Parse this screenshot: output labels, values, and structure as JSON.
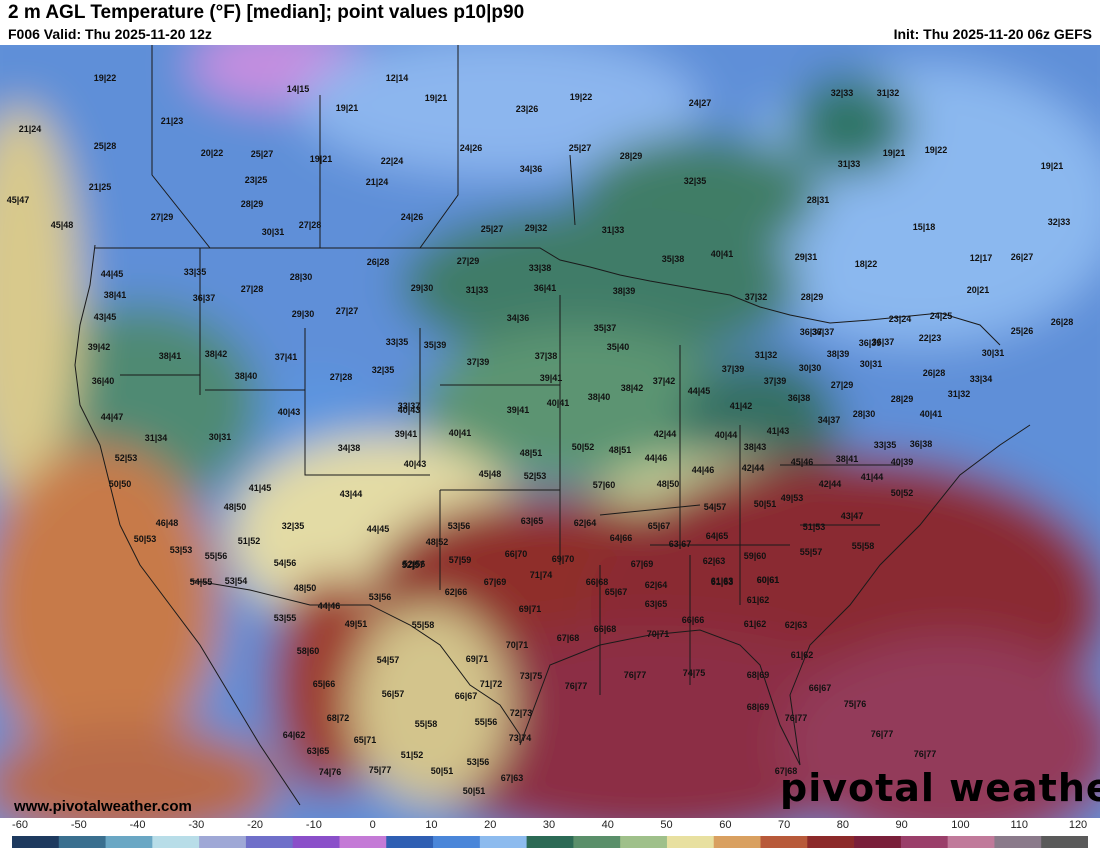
{
  "header": {
    "title": "2 m AGL Temperature (°F) [median]; point values p10|p90",
    "valid": "F006 Valid: Thu 2025-11-20 12z",
    "init": "Init: Thu 2025-11-20 06z GEFS"
  },
  "branding": {
    "website": "www.pivotalweather.com",
    "logo": "pivotal weather"
  },
  "legend": {
    "ticks": [
      "-60",
      "-50",
      "-40",
      "-30",
      "-20",
      "-10",
      "0",
      "10",
      "20",
      "30",
      "40",
      "50",
      "60",
      "70",
      "80",
      "90",
      "100",
      "110",
      "120"
    ],
    "colors": [
      "#1e3a5f",
      "#3a6f8f",
      "#6aa7c4",
      "#b8dde8",
      "#9fa8d6",
      "#6f6fc9",
      "#8a4fc9",
      "#c47ad6",
      "#2f5fb3",
      "#4a86d9",
      "#8dbbee",
      "#2c6a55",
      "#5a8f6a",
      "#9fc08a",
      "#e8e0a0",
      "#d9a060",
      "#b85a3a",
      "#8c2a2a",
      "#7a1f3a",
      "#9a3f6a",
      "#c07a9a",
      "#8a7a8a",
      "#5a5a5a"
    ]
  },
  "map_points": [
    {
      "label": "19|22"
    },
    {
      "label": "12|14"
    },
    {
      "label": "14|15"
    },
    {
      "label": "19|21"
    },
    {
      "label": "23|26"
    },
    {
      "label": "19|22"
    },
    {
      "label": "24|27"
    },
    {
      "label": "32|33"
    },
    {
      "label": "31|32"
    },
    {
      "label": "21|24"
    },
    {
      "label": "21|23"
    },
    {
      "label": "19|21"
    },
    {
      "label": "25|28"
    },
    {
      "label": "20|22"
    },
    {
      "label": "25|27"
    },
    {
      "label": "19|21"
    },
    {
      "label": "22|24"
    },
    {
      "label": "24|26"
    },
    {
      "label": "25|27"
    },
    {
      "label": "28|29"
    },
    {
      "label": "19|21"
    },
    {
      "label": "19|22"
    },
    {
      "label": "31|33"
    },
    {
      "label": "19|21"
    },
    {
      "label": "21|25"
    },
    {
      "label": "23|25"
    },
    {
      "label": "21|24"
    },
    {
      "label": "34|36"
    },
    {
      "label": "32|35"
    },
    {
      "label": "45|47"
    },
    {
      "label": "28|29"
    },
    {
      "label": "28|31"
    },
    {
      "label": "27|29"
    },
    {
      "label": "24|26"
    },
    {
      "label": "45|48"
    },
    {
      "label": "30|31"
    },
    {
      "label": "27|28"
    },
    {
      "label": "25|27"
    },
    {
      "label": "29|32"
    },
    {
      "label": "31|33"
    },
    {
      "label": "15|18"
    },
    {
      "label": "32|33"
    },
    {
      "label": "40|41"
    },
    {
      "label": "35|38"
    },
    {
      "label": "29|31"
    },
    {
      "label": "26|28"
    },
    {
      "label": "27|29"
    },
    {
      "label": "33|38"
    },
    {
      "label": "18|22"
    },
    {
      "label": "12|17"
    },
    {
      "label": "26|27"
    },
    {
      "label": "44|45"
    },
    {
      "label": "33|35"
    },
    {
      "label": "27|28"
    },
    {
      "label": "28|30"
    },
    {
      "label": "29|30"
    },
    {
      "label": "31|33"
    },
    {
      "label": "36|41"
    },
    {
      "label": "38|39"
    },
    {
      "label": "37|32"
    },
    {
      "label": "28|29"
    },
    {
      "label": "20|21"
    },
    {
      "label": "38|41"
    },
    {
      "label": "36|37"
    },
    {
      "label": "29|30"
    },
    {
      "label": "27|27"
    },
    {
      "label": "34|36"
    },
    {
      "label": "35|37"
    },
    {
      "label": "23|24"
    },
    {
      "label": "24|25"
    },
    {
      "label": "26|28"
    },
    {
      "label": "43|45"
    },
    {
      "label": "33|35"
    },
    {
      "label": "35|39"
    },
    {
      "label": "36|37"
    },
    {
      "label": "36|39"
    },
    {
      "label": "22|23"
    },
    {
      "label": "25|26"
    },
    {
      "label": "36|37"
    },
    {
      "label": "39|42"
    },
    {
      "label": "38|41"
    },
    {
      "label": "38|42"
    },
    {
      "label": "37|41"
    },
    {
      "label": "32|35"
    },
    {
      "label": "37|39"
    },
    {
      "label": "37|38"
    },
    {
      "label": "35|40"
    },
    {
      "label": "31|32"
    },
    {
      "label": "38|39"
    },
    {
      "label": "36|37"
    },
    {
      "label": "30|31"
    },
    {
      "label": "36|40"
    },
    {
      "label": "38|40"
    },
    {
      "label": "27|28"
    },
    {
      "label": "39|41"
    },
    {
      "label": "37|39"
    },
    {
      "label": "30|30"
    },
    {
      "label": "30|31"
    },
    {
      "label": "26|28"
    },
    {
      "label": "33|34"
    },
    {
      "label": "44|47"
    },
    {
      "label": "40|43"
    },
    {
      "label": "33|37"
    },
    {
      "label": "39|41"
    },
    {
      "label": "40|41"
    },
    {
      "label": "38|40"
    },
    {
      "label": "38|42"
    },
    {
      "label": "37|42"
    },
    {
      "label": "44|45"
    },
    {
      "label": "37|39"
    },
    {
      "label": "27|29"
    },
    {
      "label": "28|29"
    },
    {
      "label": "31|32"
    },
    {
      "label": "31|34"
    },
    {
      "label": "30|31"
    },
    {
      "label": "40|43"
    },
    {
      "label": "41|42"
    },
    {
      "label": "36|38"
    },
    {
      "label": "28|30"
    },
    {
      "label": "40|41"
    },
    {
      "label": "34|38"
    },
    {
      "label": "39|41"
    },
    {
      "label": "40|41"
    },
    {
      "label": "42|44"
    },
    {
      "label": "40|44"
    },
    {
      "label": "41|43"
    },
    {
      "label": "34|37"
    },
    {
      "label": "52|53"
    },
    {
      "label": "40|43"
    },
    {
      "label": "48|51"
    },
    {
      "label": "50|52"
    },
    {
      "label": "48|51"
    },
    {
      "label": "44|46"
    },
    {
      "label": "38|43"
    },
    {
      "label": "33|35"
    },
    {
      "label": "36|38"
    },
    {
      "label": "50|50"
    },
    {
      "label": "45|48"
    },
    {
      "label": "52|53"
    },
    {
      "label": "44|46"
    },
    {
      "label": "42|44"
    },
    {
      "label": "45|46"
    },
    {
      "label": "38|41"
    },
    {
      "label": "40|39"
    },
    {
      "label": "41|45"
    },
    {
      "label": "57|60"
    },
    {
      "label": "48|50"
    },
    {
      "label": "42|44"
    },
    {
      "label": "41|44"
    },
    {
      "label": "50|52"
    },
    {
      "label": "43|44"
    },
    {
      "label": "48|50"
    },
    {
      "label": "54|57"
    },
    {
      "label": "49|53"
    },
    {
      "label": "50|51"
    },
    {
      "label": "46|48"
    },
    {
      "label": "52|57"
    },
    {
      "label": "43|47"
    },
    {
      "label": "53|56"
    },
    {
      "label": "63|65"
    },
    {
      "label": "62|64"
    },
    {
      "label": "65|67"
    },
    {
      "label": "51|53"
    },
    {
      "label": "50|53"
    },
    {
      "label": "51|52"
    },
    {
      "label": "32|35"
    },
    {
      "label": "44|45"
    },
    {
      "label": "48|52"
    },
    {
      "label": "64|66"
    },
    {
      "label": "63|67"
    },
    {
      "label": "64|65"
    },
    {
      "label": "55|58"
    },
    {
      "label": "53|53"
    },
    {
      "label": "55|56"
    },
    {
      "label": "66|70"
    },
    {
      "label": "59|60"
    },
    {
      "label": "55|57"
    },
    {
      "label": "54|56"
    },
    {
      "label": "52|56"
    },
    {
      "label": "57|59"
    },
    {
      "label": "69|70"
    },
    {
      "label": "67|69"
    },
    {
      "label": "62|63"
    },
    {
      "label": "60|61"
    },
    {
      "label": "54|55"
    },
    {
      "label": "53|54"
    },
    {
      "label": "71|74"
    },
    {
      "label": "66|68"
    },
    {
      "label": "61|63"
    },
    {
      "label": "60|61"
    },
    {
      "label": "48|50"
    },
    {
      "label": "67|69"
    },
    {
      "label": "62|66"
    },
    {
      "label": "62|64"
    },
    {
      "label": "61|63"
    },
    {
      "label": "53|56"
    },
    {
      "label": "65|67"
    },
    {
      "label": "63|65"
    },
    {
      "label": "61|62"
    },
    {
      "label": "53|55"
    },
    {
      "label": "44|46"
    },
    {
      "label": "69|71"
    },
    {
      "label": "49|51"
    },
    {
      "label": "55|58"
    },
    {
      "label": "66|68"
    },
    {
      "label": "66|66"
    },
    {
      "label": "61|62"
    },
    {
      "label": "62|63"
    },
    {
      "label": "70|71"
    },
    {
      "label": "67|68"
    },
    {
      "label": "58|60"
    },
    {
      "label": "70|71"
    },
    {
      "label": "54|57"
    },
    {
      "label": "69|71"
    },
    {
      "label": "61|62"
    },
    {
      "label": "65|66"
    },
    {
      "label": "73|75"
    },
    {
      "label": "76|77"
    },
    {
      "label": "76|77"
    },
    {
      "label": "74|75"
    },
    {
      "label": "68|69"
    },
    {
      "label": "71|72"
    },
    {
      "label": "56|57"
    },
    {
      "label": "66|67"
    },
    {
      "label": "66|67"
    },
    {
      "label": "68|69"
    },
    {
      "label": "75|76"
    },
    {
      "label": "68|72"
    },
    {
      "label": "72|73"
    },
    {
      "label": "76|77"
    },
    {
      "label": "55|58"
    },
    {
      "label": "55|56"
    },
    {
      "label": "64|62"
    },
    {
      "label": "65|71"
    },
    {
      "label": "73|74"
    },
    {
      "label": "76|77"
    },
    {
      "label": "63|65"
    },
    {
      "label": "51|52"
    },
    {
      "label": "53|56"
    },
    {
      "label": "76|77"
    },
    {
      "label": "74|76"
    },
    {
      "label": "75|77"
    },
    {
      "label": "50|51"
    },
    {
      "label": "67|68"
    },
    {
      "label": "67|63"
    },
    {
      "label": "50|51"
    }
  ]
}
